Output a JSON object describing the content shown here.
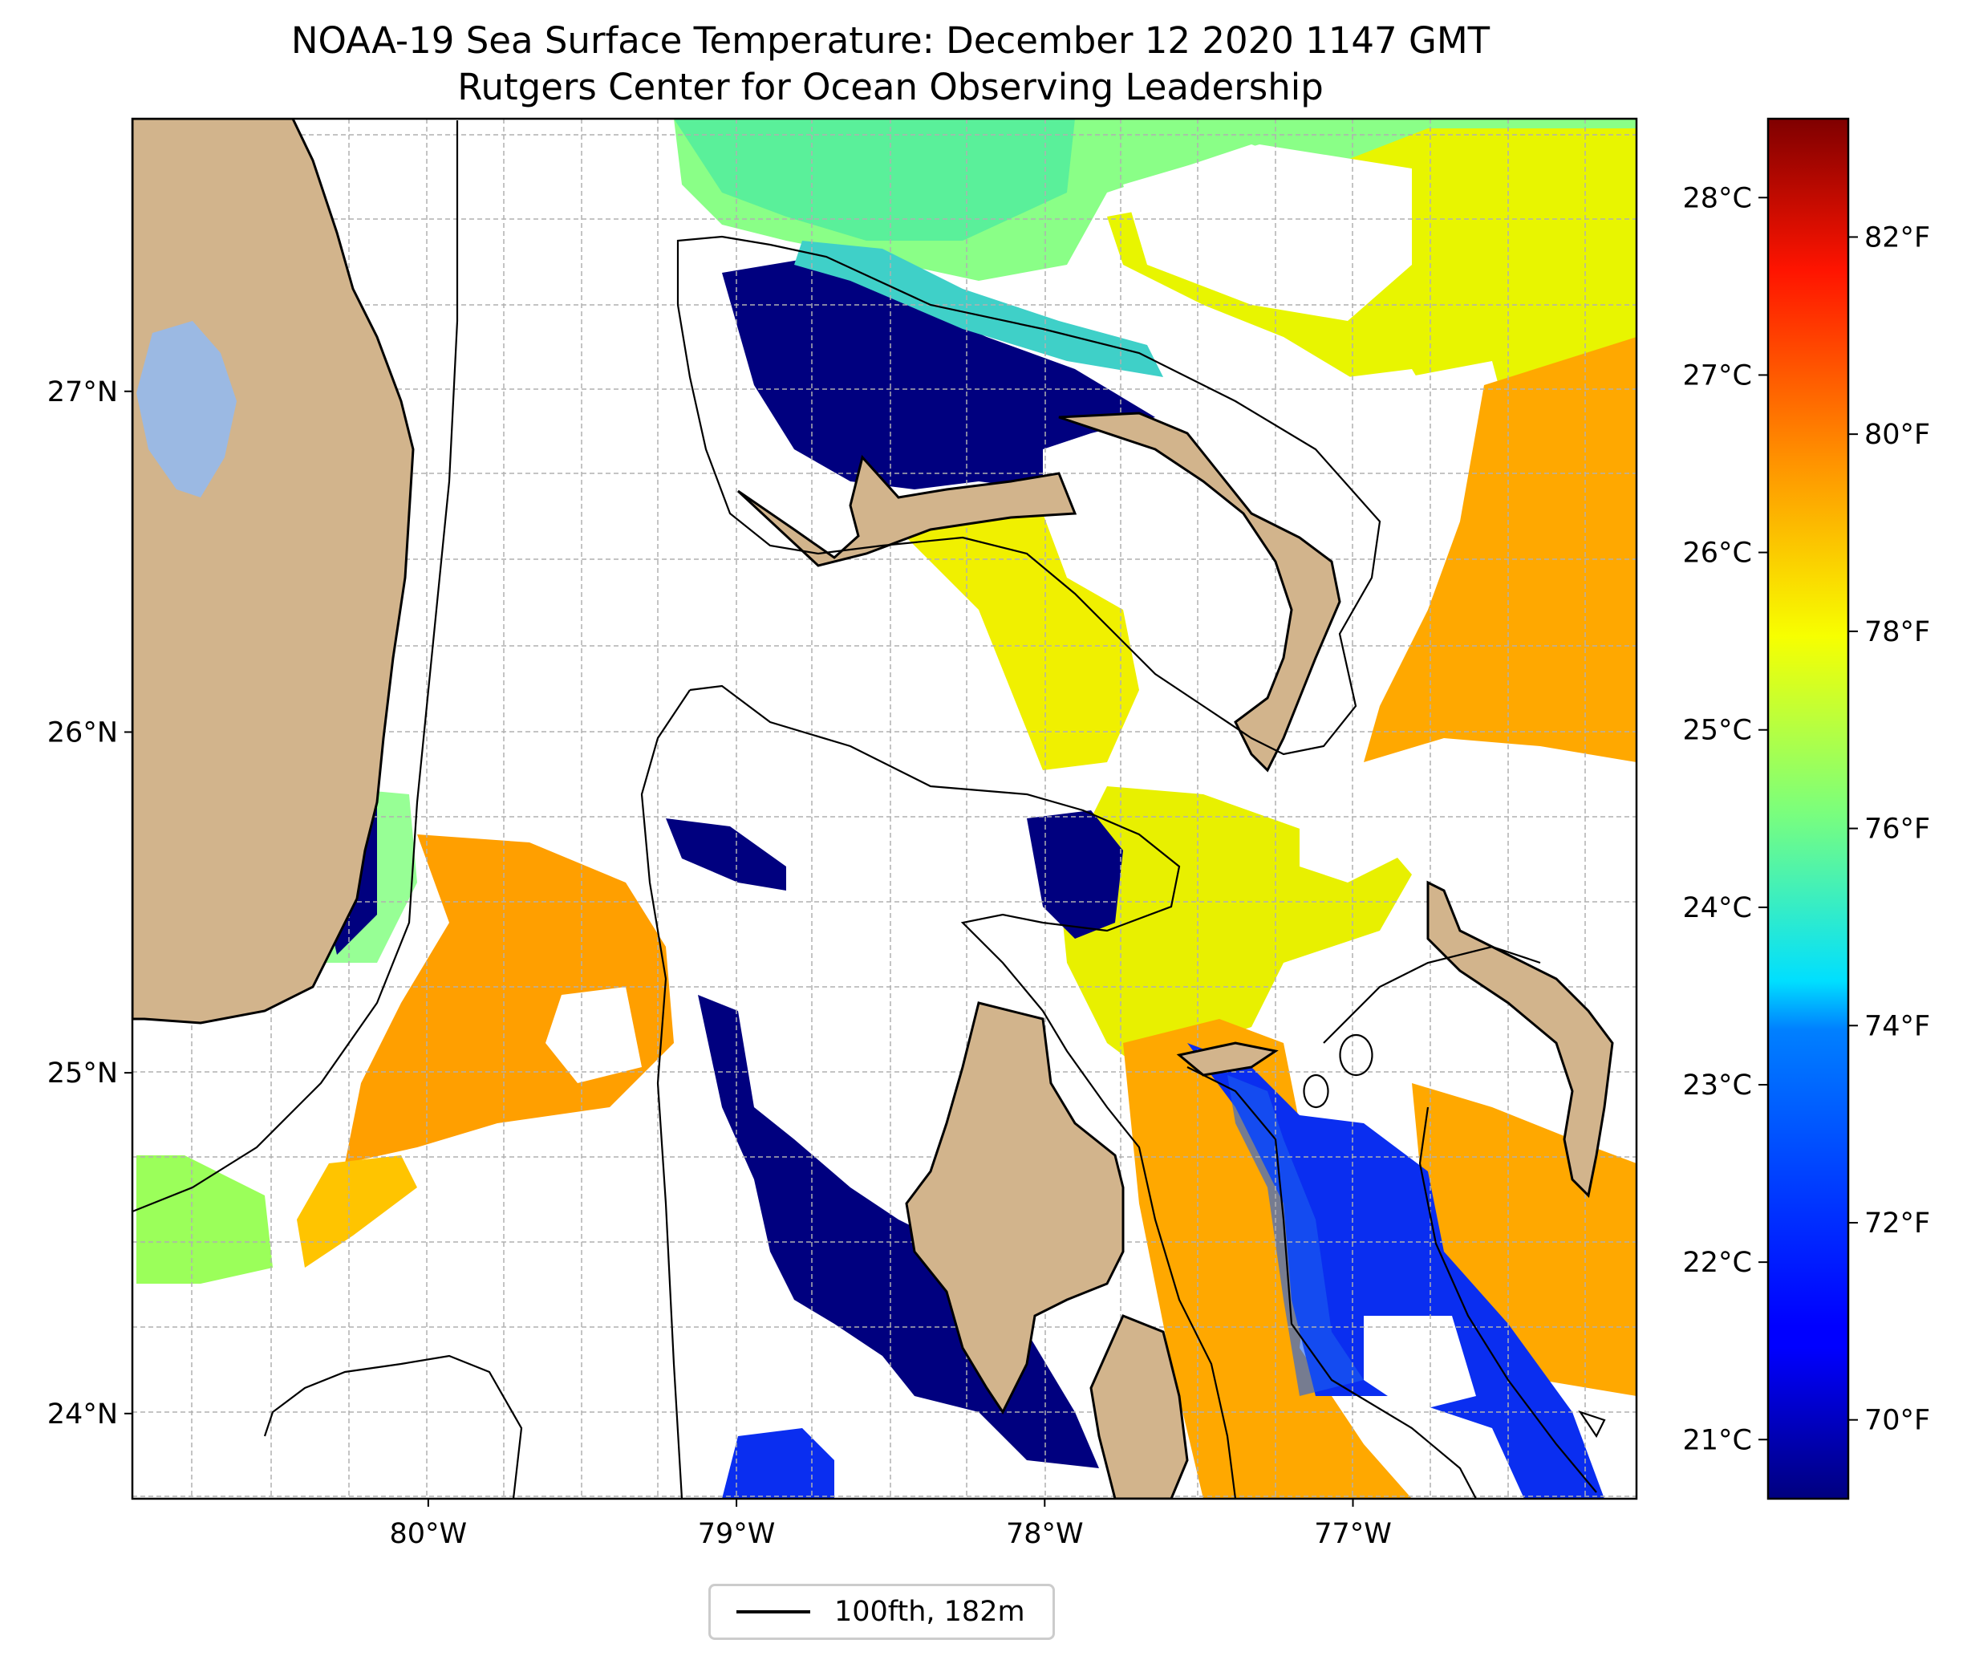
{
  "title": {
    "line1": "NOAA-19 Sea Surface Temperature: December 12 2020 1147 GMT",
    "line2": "Rutgers Center for Ocean Observing Leadership"
  },
  "map": {
    "lon_range": [
      -80.96,
      -76.08
    ],
    "lat_range": [
      23.75,
      27.8
    ],
    "lon_ticks": [
      "80°W",
      "79°W",
      "78°W",
      "77°W"
    ],
    "lon_tick_values": [
      -80,
      -79,
      -78,
      -77
    ],
    "lat_ticks": [
      "27°N",
      "26°N",
      "25°N",
      "24°N"
    ],
    "lat_tick_values": [
      27,
      26,
      25,
      24
    ],
    "gridlines": true,
    "colors": {
      "land": "#d2b48c",
      "lake": "#9bb9e3",
      "no_data": "#ffffff",
      "contour": "#000000"
    }
  },
  "colorbar": {
    "celsius_ticks": [
      "28°C",
      "27°C",
      "26°C",
      "25°C",
      "24°C",
      "23°C",
      "22°C",
      "21°C"
    ],
    "celsius_values": [
      28,
      27,
      26,
      25,
      24,
      23,
      22,
      21
    ],
    "fahrenheit_ticks": [
      "82°F",
      "80°F",
      "78°F",
      "76°F",
      "74°F",
      "72°F",
      "70°F"
    ],
    "fahrenheit_values": [
      82,
      80,
      78,
      76,
      74,
      72,
      70
    ],
    "range_f": [
      69.2,
      83.2
    ],
    "colormap": "jet"
  },
  "legend": {
    "entry_label": "100fth, 182m",
    "entry_color": "#000000"
  }
}
